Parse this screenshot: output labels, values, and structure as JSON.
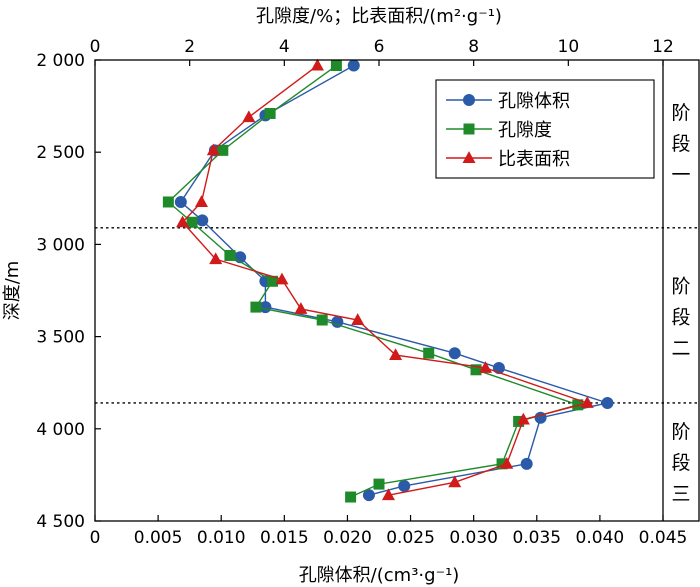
{
  "chart_data": {
    "type": "line",
    "title": "",
    "top_axis": {
      "label": "孔隙度/%；比表面积/(m²·g⁻¹)",
      "lim": [
        0,
        12
      ],
      "ticks": [
        0,
        2,
        4,
        6,
        8,
        10,
        12
      ],
      "tick_labels": [
        "0",
        "2",
        "4",
        "6",
        "8",
        "10",
        "12"
      ]
    },
    "bottom_axis": {
      "label": "孔隙体积/(cm³·g⁻¹)",
      "lim": [
        0,
        0.045
      ],
      "ticks": [
        0,
        0.005,
        0.01,
        0.015,
        0.02,
        0.025,
        0.03,
        0.035,
        0.04,
        0.045
      ],
      "tick_labels": [
        "0",
        "0.005",
        "0.010",
        "0.015",
        "0.020",
        "0.025",
        "0.030",
        "0.035",
        "0.040",
        "0.045"
      ]
    },
    "y_axis": {
      "label": "深度/m",
      "lim": [
        2000,
        4500
      ],
      "inverted": true,
      "ticks": [
        2000,
        2500,
        3000,
        3500,
        4000,
        4500
      ],
      "tick_labels": [
        "2 000",
        "2 500",
        "3 000",
        "3 500",
        "4 000",
        "4 500"
      ]
    },
    "series": [
      {
        "name": "孔隙体积",
        "axis": "bottom",
        "color": "#2b5aa8",
        "marker": "circle",
        "points": [
          {
            "x": 0.0205,
            "y": 2030
          },
          {
            "x": 0.0135,
            "y": 2300
          },
          {
            "x": 0.0095,
            "y": 2490
          },
          {
            "x": 0.0068,
            "y": 2770
          },
          {
            "x": 0.0085,
            "y": 2870
          },
          {
            "x": 0.0115,
            "y": 3070
          },
          {
            "x": 0.0135,
            "y": 3200
          },
          {
            "x": 0.0135,
            "y": 3340
          },
          {
            "x": 0.0192,
            "y": 3420
          },
          {
            "x": 0.0285,
            "y": 3590
          },
          {
            "x": 0.032,
            "y": 3670
          },
          {
            "x": 0.0406,
            "y": 3860
          },
          {
            "x": 0.0353,
            "y": 3940
          },
          {
            "x": 0.0342,
            "y": 4190
          },
          {
            "x": 0.0245,
            "y": 4310
          },
          {
            "x": 0.0217,
            "y": 4360
          }
        ]
      },
      {
        "name": "孔隙度",
        "axis": "top",
        "color": "#1f8a2a",
        "marker": "square",
        "points": [
          {
            "x": 5.1,
            "y": 2030
          },
          {
            "x": 3.7,
            "y": 2290
          },
          {
            "x": 2.7,
            "y": 2490
          },
          {
            "x": 1.55,
            "y": 2770
          },
          {
            "x": 2.05,
            "y": 2880
          },
          {
            "x": 2.85,
            "y": 3060
          },
          {
            "x": 3.75,
            "y": 3200
          },
          {
            "x": 3.4,
            "y": 3340
          },
          {
            "x": 4.8,
            "y": 3410
          },
          {
            "x": 7.05,
            "y": 3590
          },
          {
            "x": 8.05,
            "y": 3680
          },
          {
            "x": 10.2,
            "y": 3870
          },
          {
            "x": 8.95,
            "y": 3960
          },
          {
            "x": 8.6,
            "y": 4190
          },
          {
            "x": 6.0,
            "y": 4300
          },
          {
            "x": 5.4,
            "y": 4370
          }
        ]
      },
      {
        "name": "比表面积",
        "axis": "top",
        "color": "#d11a1a",
        "marker": "triangle",
        "points": [
          {
            "x": 4.7,
            "y": 2030
          },
          {
            "x": 3.25,
            "y": 2310
          },
          {
            "x": 2.5,
            "y": 2490
          },
          {
            "x": 2.25,
            "y": 2770
          },
          {
            "x": 1.85,
            "y": 2880
          },
          {
            "x": 2.55,
            "y": 3080
          },
          {
            "x": 3.95,
            "y": 3190
          },
          {
            "x": 4.35,
            "y": 3350
          },
          {
            "x": 5.55,
            "y": 3410
          },
          {
            "x": 6.35,
            "y": 3600
          },
          {
            "x": 8.25,
            "y": 3670
          },
          {
            "x": 10.4,
            "y": 3860
          },
          {
            "x": 9.05,
            "y": 3950
          },
          {
            "x": 8.7,
            "y": 4190
          },
          {
            "x": 7.6,
            "y": 4290
          },
          {
            "x": 6.2,
            "y": 4360
          }
        ]
      }
    ],
    "stage_boundaries": [
      2910,
      3860
    ],
    "stages": [
      {
        "chars": [
          "阶",
          "段",
          "一"
        ],
        "y": 2450
      },
      {
        "chars": [
          "阶",
          "段",
          "二"
        ],
        "y": 3390
      },
      {
        "chars": [
          "阶",
          "段",
          "三"
        ],
        "y": 4180
      }
    ],
    "legend": {
      "position": "top-right",
      "entries": [
        "孔隙体积",
        "孔隙度",
        "比表面积"
      ]
    },
    "grid": false
  }
}
